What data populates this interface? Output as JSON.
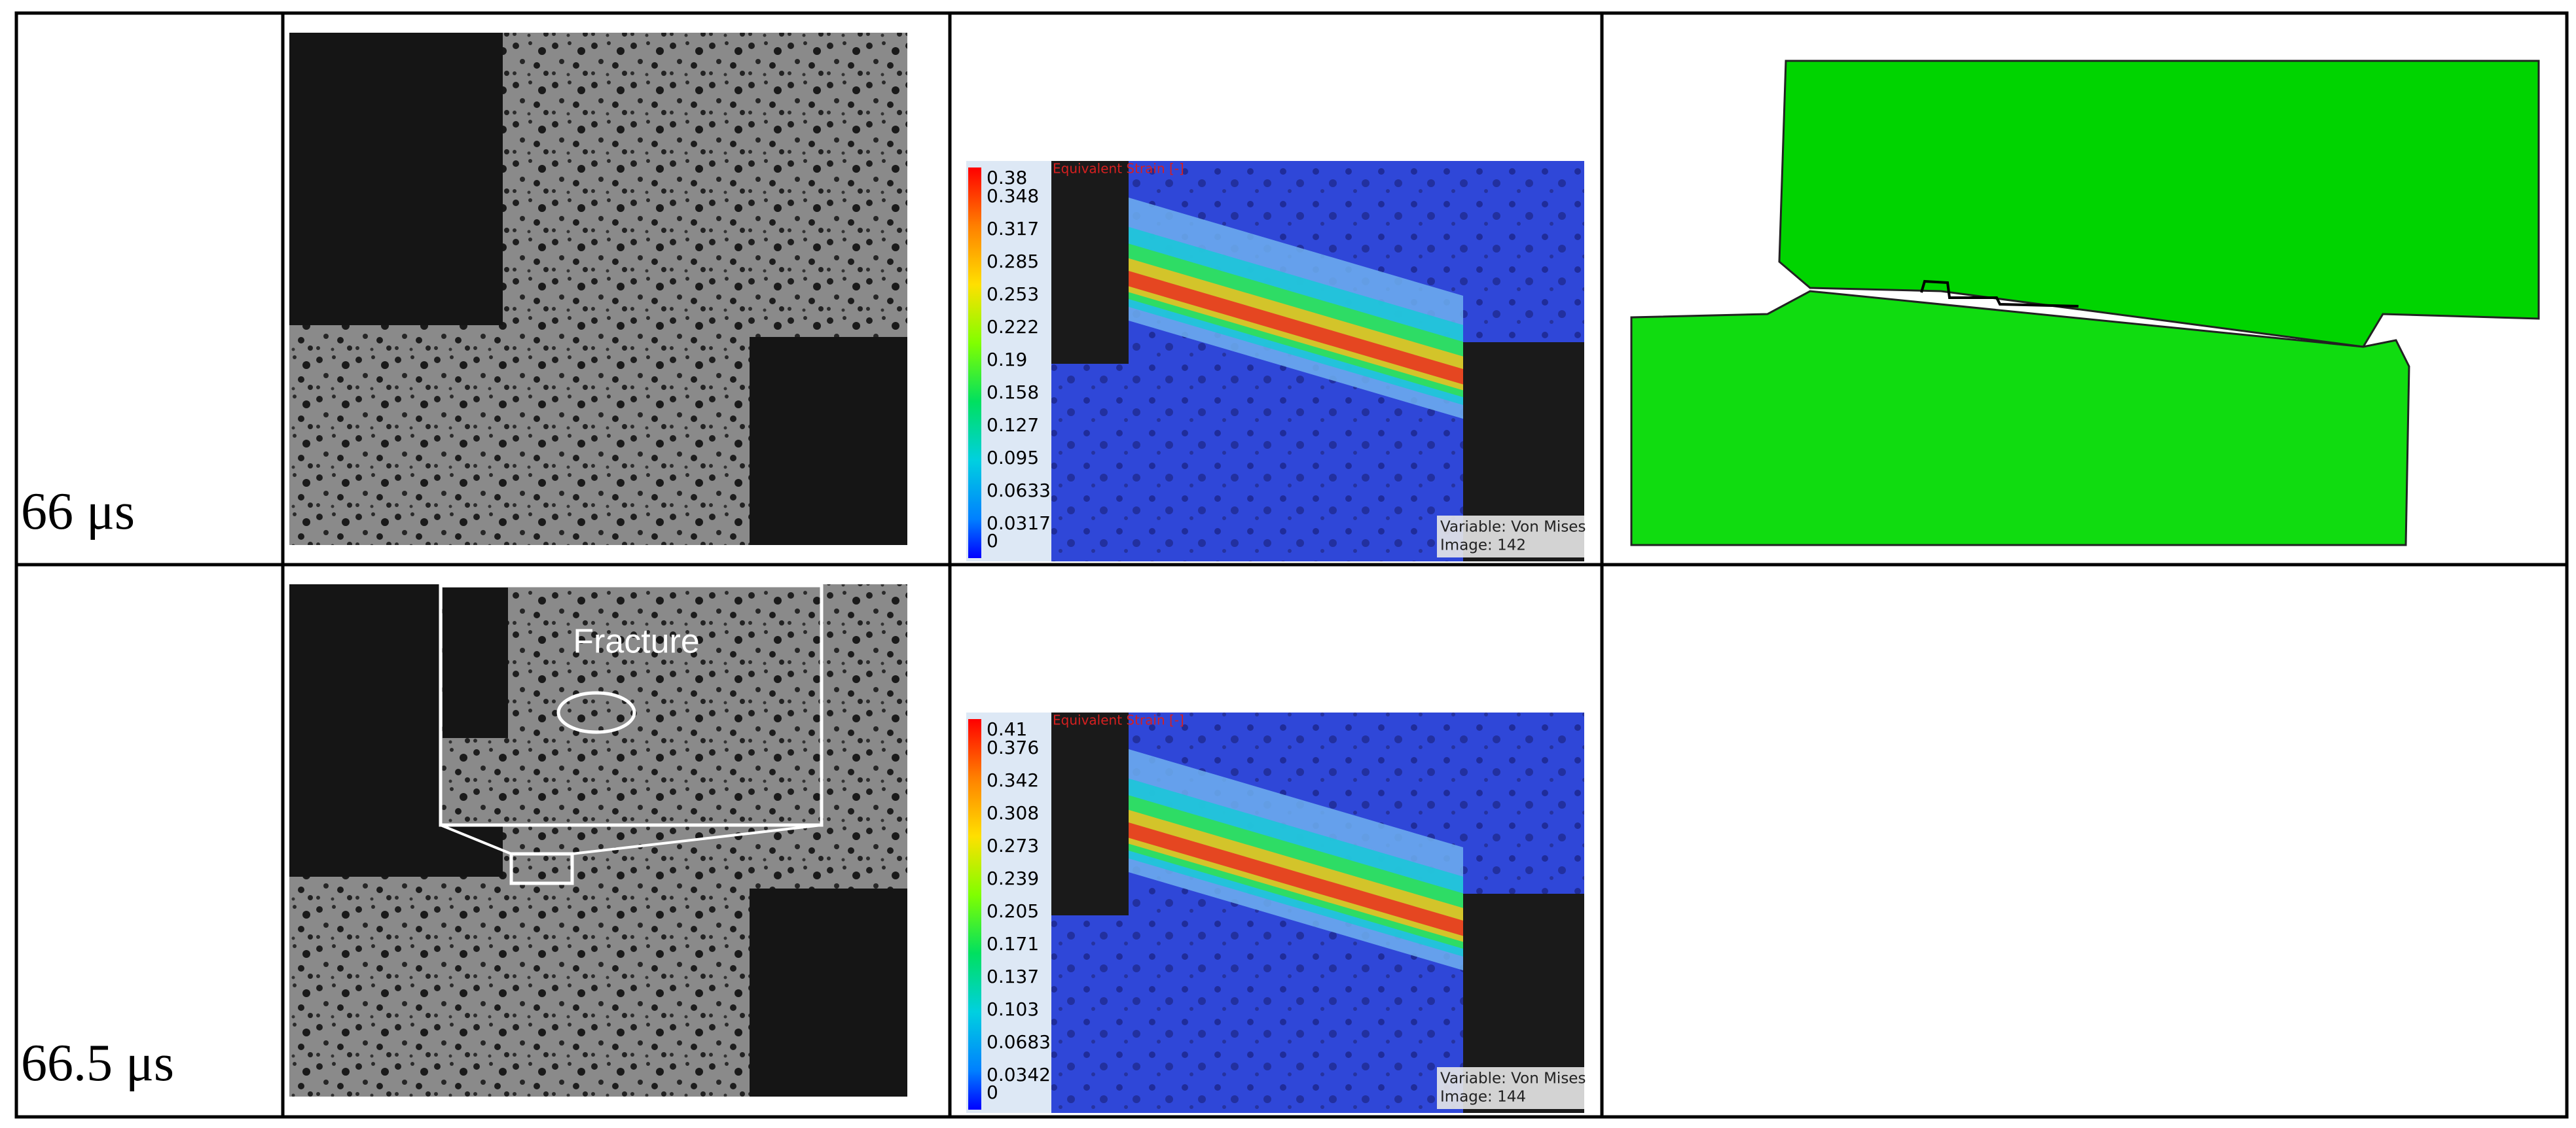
{
  "rows": [
    {
      "time": "66 μs",
      "strain": {
        "title": "Equivalent Strain [-]",
        "ticks": [
          "0.38",
          "0.348",
          "0.317",
          "0.285",
          "0.253",
          "0.222",
          "0.19",
          "0.158",
          "0.127",
          "0.095",
          "0.0633",
          "0.0317",
          "0"
        ],
        "variable": "Variable: Von Mises",
        "image": "Image: 142"
      }
    },
    {
      "time": "66.5 μs",
      "inset_label": "Fracture",
      "strain": {
        "title": "Equivalent Strain [-]",
        "ticks": [
          "0.41",
          "0.376",
          "0.342",
          "0.308",
          "0.273",
          "0.239",
          "0.205",
          "0.171",
          "0.137",
          "0.103",
          "0.0683",
          "0.0342",
          "0"
        ],
        "variable": "Variable: Von Mises",
        "image": "Image: 144"
      }
    }
  ]
}
